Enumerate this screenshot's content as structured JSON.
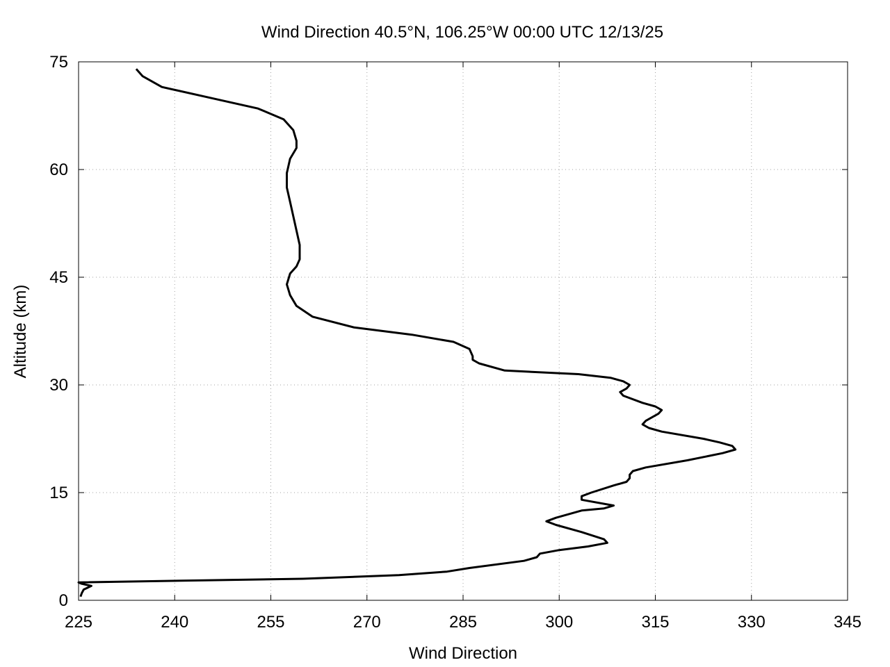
{
  "chart_data": {
    "type": "line",
    "title": "Wind Direction 40.5°N, 106.25°W 00:00 UTC 12/13/25",
    "xlabel": "Wind Direction",
    "ylabel": "Altitude (km)",
    "xlim": [
      225,
      345
    ],
    "ylim": [
      0,
      75
    ],
    "xticks": [
      225,
      240,
      255,
      270,
      285,
      300,
      315,
      330,
      345
    ],
    "yticks": [
      0,
      15,
      30,
      45,
      60,
      75
    ],
    "xtick_labels": [
      "225",
      "240",
      "255",
      "270",
      "285",
      "300",
      "315",
      "330",
      "345"
    ],
    "ytick_labels": [
      "0",
      "15",
      "30",
      "45",
      "60",
      "75"
    ],
    "grid": true,
    "legend": "none",
    "line_color": "#000000",
    "series": [
      {
        "x": [
          225.3,
          225.5,
          225.8,
          227.0,
          225.5,
          225.0,
          260.0,
          275.0,
          282.5,
          286.0,
          294.5,
          296.5,
          297.0,
          300.0,
          304.5,
          307.5,
          307.0,
          303.5,
          299.5,
          298.0,
          299.5,
          303.5,
          307.0,
          308.5,
          303.5,
          303.5,
          305.0,
          308.5,
          310.5,
          311.0,
          311.0,
          311.5,
          313.5,
          320.0,
          325.5,
          327.5,
          327.0,
          325.0,
          322.5,
          316.0,
          314.0,
          313.0,
          313.5,
          315.5,
          316.0,
          315.0,
          313.0,
          310.0,
          309.5,
          310.5,
          311.0,
          310.0,
          308.0,
          303.0,
          291.5,
          287.5,
          286.5,
          286.5,
          286.0,
          283.5,
          277.0,
          268.0,
          261.5,
          259.0,
          258.0,
          257.5,
          258.0,
          259.0,
          259.5,
          259.5,
          259.0,
          258.5,
          258.0,
          257.5,
          257.5,
          258.0,
          259.0,
          259.0,
          258.5,
          257.0,
          253.0,
          245.5,
          238.0,
          235.0,
          234.0
        ],
        "y": [
          0.5,
          1.0,
          1.5,
          2.0,
          2.3,
          2.5,
          3.0,
          3.5,
          4.0,
          4.5,
          5.5,
          6.0,
          6.5,
          7.0,
          7.5,
          8.0,
          8.5,
          9.5,
          10.5,
          11.0,
          11.5,
          12.5,
          12.8,
          13.2,
          14.0,
          14.5,
          15.0,
          16.0,
          16.5,
          17.0,
          17.5,
          18.0,
          18.5,
          19.5,
          20.5,
          21.0,
          21.5,
          22.0,
          22.5,
          23.5,
          24.0,
          24.5,
          25.0,
          26.0,
          26.5,
          27.0,
          27.5,
          28.5,
          29.0,
          29.5,
          30.0,
          30.5,
          31.0,
          31.5,
          32.0,
          33.0,
          33.5,
          34.0,
          35.0,
          36.0,
          37.0,
          38.0,
          39.5,
          41.0,
          42.5,
          44.0,
          45.5,
          46.5,
          47.5,
          49.5,
          51.5,
          53.5,
          55.5,
          57.5,
          59.5,
          61.5,
          63.0,
          64.0,
          65.5,
          67.0,
          68.5,
          70.0,
          71.5,
          73.0,
          74.0
        ]
      }
    ]
  }
}
